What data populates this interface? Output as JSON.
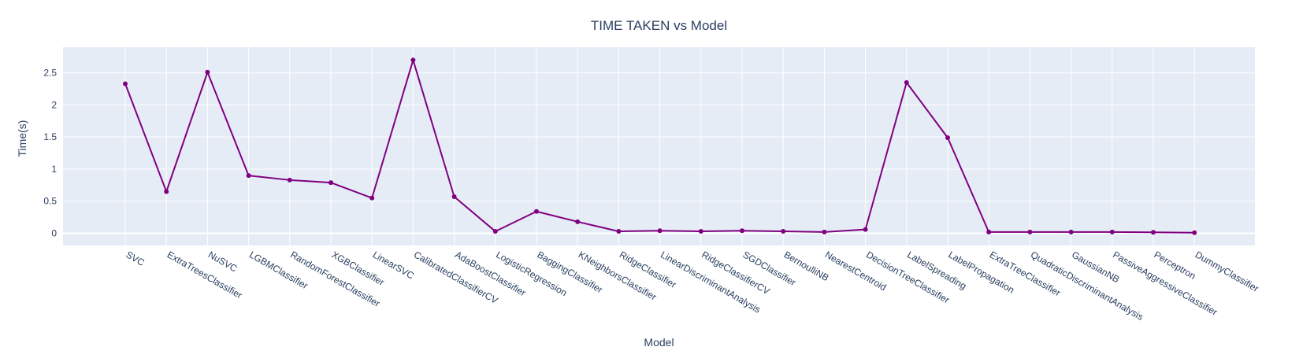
{
  "chart_data": {
    "type": "line",
    "title": "TIME TAKEN vs Model",
    "xlabel": "Model",
    "ylabel": "Time(s)",
    "ylim": [
      -0.19,
      2.9
    ],
    "yticks": [
      0,
      0.5,
      1,
      1.5,
      2,
      2.5
    ],
    "ytick_labels": [
      "0",
      "0.5",
      "1",
      "1.5",
      "2",
      "2.5"
    ],
    "grid": true,
    "legend": "none",
    "colors": {
      "line": "#800080",
      "plot_background": "#e5ecf6",
      "grid": "#ffffff",
      "text": "#2a3f5f"
    },
    "categories": [
      "SVC",
      "ExtraTreesClassifier",
      "NuSVC",
      "LGBMClassifier",
      "RandomForestClassifier",
      "XGBClassifier",
      "LinearSVC",
      "CalibratedClassifierCV",
      "AdaBoostClassifier",
      "LogisticRegression",
      "BaggingClassifier",
      "KNeighborsClassifier",
      "RidgeClassifier",
      "LinearDiscriminantAnalysis",
      "RidgeClassifierCV",
      "SGDClassifier",
      "BernoulliNB",
      "NearestCentroid",
      "DecisionTreeClassifier",
      "LabelSpreading",
      "LabelPropagation",
      "ExtraTreeClassifier",
      "QuadraticDiscriminantAnalysis",
      "GaussianNB",
      "PassiveAggressiveClassifier",
      "Perceptron",
      "DummyClassifier"
    ],
    "series": [
      {
        "values": [
          2.33,
          0.65,
          2.51,
          0.9,
          0.83,
          0.79,
          0.55,
          2.7,
          0.57,
          0.03,
          0.34,
          0.18,
          0.03,
          0.04,
          0.03,
          0.04,
          0.03,
          0.02,
          0.06,
          2.35,
          1.49,
          0.02,
          0.02,
          0.02,
          0.02,
          0.015,
          0.01
        ]
      }
    ]
  }
}
